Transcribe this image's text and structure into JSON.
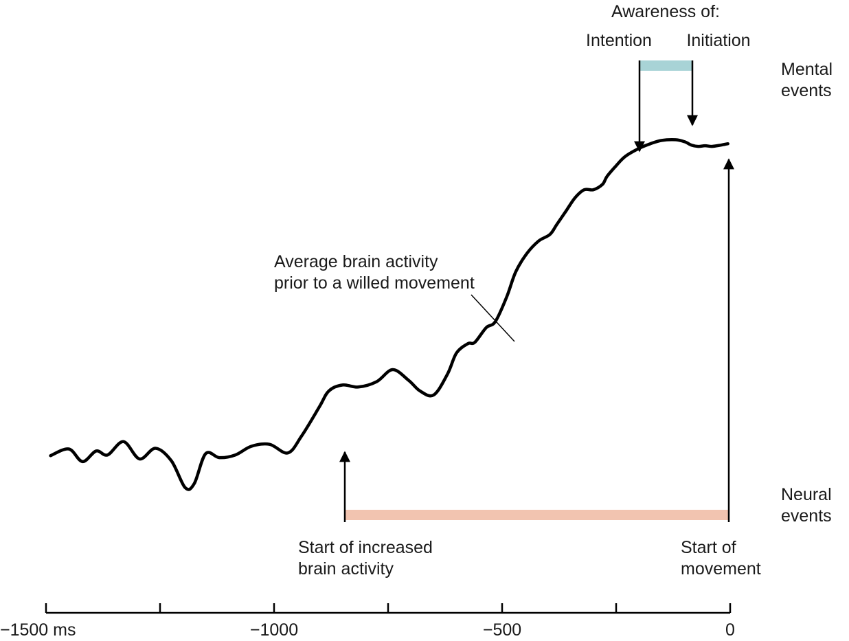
{
  "header": {
    "awareness_title": "Awareness of:",
    "intention_label": "Intention",
    "initiation_label": "Initiation"
  },
  "mental_events_lines": [
    "Mental",
    "events"
  ],
  "neural_events_lines": [
    "Neural",
    "events"
  ],
  "curve_annotation_lines": [
    "Average brain activity",
    "prior to a willed movement"
  ],
  "start_increase_lines": [
    "Start of increased",
    "brain activity"
  ],
  "start_movement_lines": [
    "Start of",
    "movement"
  ],
  "colors": {
    "curve": "#000000",
    "mental_bar": "#a8d3d6",
    "neural_bar": "#f2c4b0",
    "axis": "#000000"
  },
  "chart_data": {
    "type": "line",
    "x_unit": "ms",
    "xlim": [
      -1500,
      0
    ],
    "x_ticks": [
      -1500,
      -1250,
      -1000,
      -750,
      -500,
      -250,
      0
    ],
    "x_tick_labels": [
      "−1500 ms",
      "",
      "−1000",
      "",
      "−500",
      "",
      "0"
    ],
    "events": {
      "start_of_increased_brain_activity_ms": -850,
      "start_of_movement_ms": 0,
      "awareness_of_intention_ms": -200,
      "awareness_of_initiation_ms": -85
    },
    "series": [
      {
        "x": [
          -1490,
          -1450,
          -1420,
          -1390,
          -1365,
          -1330,
          -1295,
          -1260,
          -1225,
          -1195,
          -1175,
          -1150,
          -1120,
          -1085,
          -1050,
          -1010,
          -970,
          -940,
          -900,
          -880,
          -850,
          -815,
          -775,
          -740,
          -705,
          -680,
          -650,
          -620,
          -600,
          -575,
          -560,
          -535,
          -515,
          -490,
          -470,
          -445,
          -420,
          -395,
          -380,
          -360,
          -340,
          -320,
          -300,
          -280,
          -270,
          -250,
          -230,
          -200,
          -175,
          -150,
          -120,
          -100,
          -85,
          -70,
          -55,
          -40,
          -20,
          -5
        ],
        "y": [
          0.06,
          0.16,
          -0.03,
          0.13,
          0.07,
          0.27,
          0.01,
          0.17,
          -0.02,
          -0.42,
          -0.36,
          0.09,
          0.03,
          0.07,
          0.2,
          0.23,
          0.1,
          0.35,
          0.8,
          1.03,
          1.12,
          1.09,
          1.17,
          1.35,
          1.19,
          1.03,
          0.97,
          1.28,
          1.6,
          1.74,
          1.76,
          1.98,
          2.07,
          2.44,
          2.82,
          3.1,
          3.28,
          3.38,
          3.53,
          3.73,
          3.93,
          4.05,
          4.05,
          4.13,
          4.25,
          4.41,
          4.55,
          4.67,
          4.74,
          4.79,
          4.8,
          4.77,
          4.72,
          4.7,
          4.71,
          4.7,
          4.72,
          4.74
        ]
      }
    ]
  }
}
